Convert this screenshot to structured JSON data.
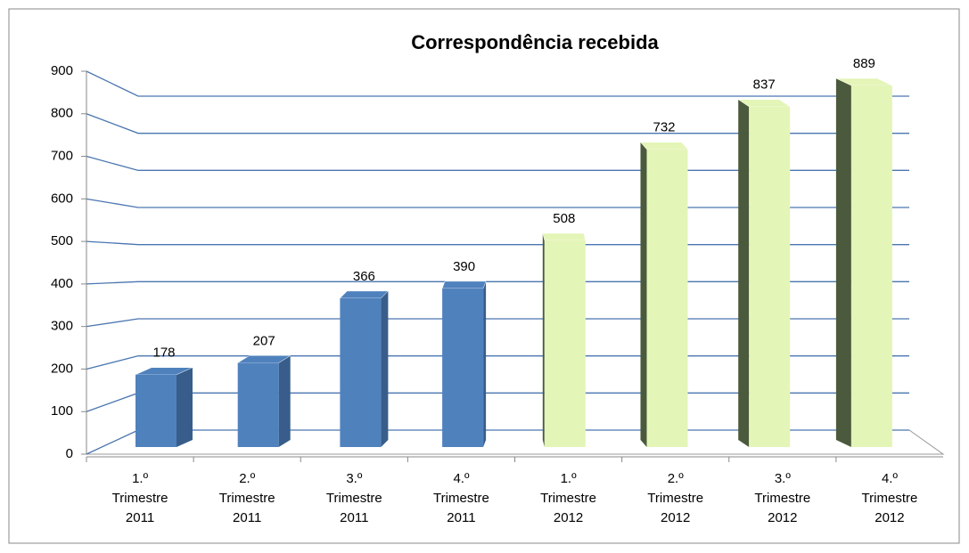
{
  "chart_data": {
    "type": "bar3d",
    "title": "Correspondência recebida",
    "categories": [
      "1.º Trimestre 2011",
      "2.º Trimestre 2011",
      "3.º Trimestre 2011",
      "4.º Trimestre 2011",
      "1.º Trimestre 2012",
      "2.º Trimestre 2012",
      "3.º Trimestre 2012",
      "4.º Trimestre 2012"
    ],
    "values": [
      178,
      207,
      366,
      390,
      508,
      732,
      837,
      889
    ],
    "colors": [
      "#4f81bd",
      "#4f81bd",
      "#4f81bd",
      "#4f81bd",
      "#e4f5b8",
      "#e4f5b8",
      "#e4f5b8",
      "#e4f5b8"
    ],
    "ylim": [
      0,
      900
    ],
    "yticks": [
      0,
      100,
      200,
      300,
      400,
      500,
      600,
      700,
      800,
      900
    ],
    "grid": true
  }
}
